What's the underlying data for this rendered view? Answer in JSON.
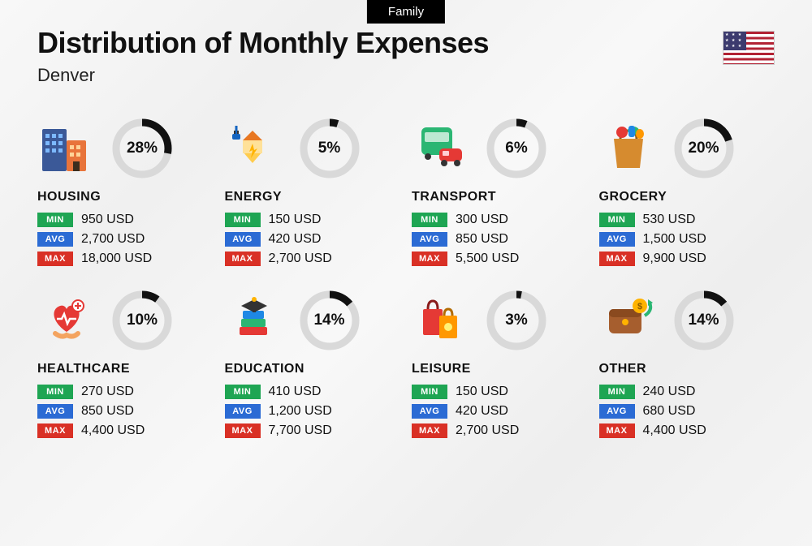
{
  "topTag": "Family",
  "title": "Distribution of Monthly Expenses",
  "subtitle": "Denver",
  "badges": {
    "min": "MIN",
    "avg": "AVG",
    "max": "MAX"
  },
  "donut": {
    "track": "#d9d9d9",
    "arc": "#111111",
    "r": 32,
    "stroke": 9
  },
  "categories": [
    {
      "name": "HOUSING",
      "pct": 28,
      "icon": "housing",
      "min": "950 USD",
      "avg": "2,700 USD",
      "max": "18,000 USD"
    },
    {
      "name": "ENERGY",
      "pct": 5,
      "icon": "energy",
      "min": "150 USD",
      "avg": "420 USD",
      "max": "2,700 USD"
    },
    {
      "name": "TRANSPORT",
      "pct": 6,
      "icon": "transport",
      "min": "300 USD",
      "avg": "850 USD",
      "max": "5,500 USD"
    },
    {
      "name": "GROCERY",
      "pct": 20,
      "icon": "grocery",
      "min": "530 USD",
      "avg": "1,500 USD",
      "max": "9,900 USD"
    },
    {
      "name": "HEALTHCARE",
      "pct": 10,
      "icon": "healthcare",
      "min": "270 USD",
      "avg": "850 USD",
      "max": "4,400 USD"
    },
    {
      "name": "EDUCATION",
      "pct": 14,
      "icon": "education",
      "min": "410 USD",
      "avg": "1,200 USD",
      "max": "7,700 USD"
    },
    {
      "name": "LEISURE",
      "pct": 3,
      "icon": "leisure",
      "min": "150 USD",
      "avg": "420 USD",
      "max": "2,700 USD"
    },
    {
      "name": "OTHER",
      "pct": 14,
      "icon": "other",
      "min": "240 USD",
      "avg": "680 USD",
      "max": "4,400 USD"
    }
  ]
}
